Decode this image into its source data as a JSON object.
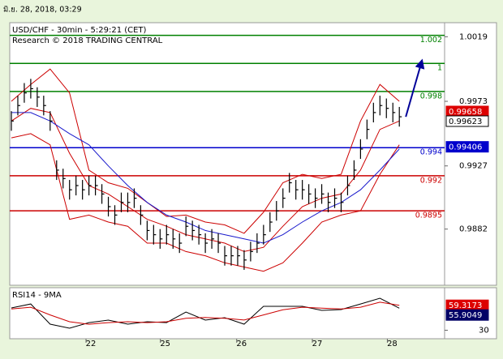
{
  "timestamp": "มิ.ย. 28, 2018, 03:29",
  "chart_data": [
    {
      "type": "ohlc",
      "title": "USD/CHF - 30min - 5:29:21 (CET)",
      "subtitle": "Research © 2018 TRADING CENTRAL",
      "color": "#000000",
      "x": [
        0,
        1,
        2,
        3,
        4,
        5,
        6,
        7,
        8,
        9,
        10,
        11,
        12,
        13,
        14,
        15,
        16,
        17,
        18,
        19,
        20,
        21,
        22,
        23,
        24,
        25,
        26,
        27,
        28,
        29,
        30,
        31,
        32,
        33,
        34,
        35,
        36,
        37,
        38,
        39,
        40,
        41,
        42,
        43,
        44,
        45,
        46,
        47,
        48,
        49,
        50,
        51,
        52,
        53,
        54,
        55,
        56,
        57,
        58,
        59,
        60
      ],
      "high": [
        0.9966,
        0.9977,
        0.9986,
        0.9989,
        0.9983,
        0.9977,
        0.9966,
        0.9931,
        0.9925,
        0.9917,
        0.992,
        0.9917,
        0.992,
        0.992,
        0.9914,
        0.9905,
        0.9899,
        0.9908,
        0.9908,
        0.9911,
        0.9899,
        0.9888,
        0.9885,
        0.9882,
        0.9885,
        0.9882,
        0.9879,
        0.9891,
        0.9888,
        0.9885,
        0.9879,
        0.9882,
        0.9879,
        0.987,
        0.987,
        0.987,
        0.9867,
        0.9873,
        0.9879,
        0.9885,
        0.9894,
        0.9902,
        0.9911,
        0.9922,
        0.9917,
        0.9917,
        0.9914,
        0.9911,
        0.9914,
        0.9908,
        0.9911,
        0.9908,
        0.992,
        0.9931,
        0.9946,
        0.996,
        0.9972,
        0.9977,
        0.9975,
        0.9972,
        0.9969
      ],
      "low": [
        0.9952,
        0.9963,
        0.9972,
        0.9975,
        0.9969,
        0.9963,
        0.9952,
        0.9917,
        0.9911,
        0.9903,
        0.9906,
        0.9903,
        0.9906,
        0.9906,
        0.99,
        0.9891,
        0.9885,
        0.9894,
        0.9894,
        0.9897,
        0.9885,
        0.9874,
        0.9871,
        0.9868,
        0.9871,
        0.9868,
        0.9865,
        0.9877,
        0.9874,
        0.9871,
        0.9865,
        0.9868,
        0.9865,
        0.9856,
        0.9856,
        0.9856,
        0.9853,
        0.9859,
        0.9865,
        0.9871,
        0.988,
        0.9888,
        0.9897,
        0.9908,
        0.9903,
        0.9903,
        0.99,
        0.9897,
        0.99,
        0.9894,
        0.9897,
        0.9894,
        0.9906,
        0.9917,
        0.9932,
        0.9946,
        0.9958,
        0.9963,
        0.9961,
        0.9958,
        0.9955
      ],
      "close": [
        0.9959,
        0.997,
        0.9979,
        0.9982,
        0.9976,
        0.997,
        0.9959,
        0.9924,
        0.9918,
        0.991,
        0.9913,
        0.991,
        0.9913,
        0.9913,
        0.9907,
        0.9898,
        0.9892,
        0.9901,
        0.9901,
        0.9904,
        0.9892,
        0.9881,
        0.9878,
        0.9875,
        0.9878,
        0.9875,
        0.9872,
        0.9884,
        0.9881,
        0.9878,
        0.9872,
        0.9875,
        0.9872,
        0.9863,
        0.9863,
        0.9863,
        0.986,
        0.9866,
        0.9872,
        0.9878,
        0.9887,
        0.9895,
        0.9904,
        0.9915,
        0.991,
        0.991,
        0.9907,
        0.9904,
        0.9907,
        0.9901,
        0.9904,
        0.9901,
        0.9913,
        0.9924,
        0.9939,
        0.9953,
        0.9965,
        0.997,
        0.9968,
        0.9965,
        0.9962
      ],
      "lines": [
        {
          "color": "#cc0000",
          "x": [
            0,
            3,
            6,
            9,
            12,
            15,
            18,
            21,
            24,
            27,
            30,
            33,
            36,
            39,
            42,
            45,
            48,
            51,
            54,
            57,
            60
          ],
          "values": [
            0.9973,
            0.9985,
            0.9996,
            0.9979,
            0.9924,
            0.9915,
            0.9911,
            0.9901,
            0.9891,
            0.9892,
            0.9887,
            0.9885,
            0.9879,
            0.9894,
            0.9915,
            0.9921,
            0.9918,
            0.9921,
            0.9959,
            0.9985,
            0.9973
          ]
        },
        {
          "color": "#cc0000",
          "x": [
            0,
            3,
            6,
            9,
            12,
            15,
            18,
            21,
            24,
            27,
            30,
            33,
            36,
            39,
            42,
            45,
            48,
            51,
            54,
            57,
            60
          ],
          "values": [
            0.9947,
            0.995,
            0.9942,
            0.9889,
            0.9892,
            0.9887,
            0.9884,
            0.9872,
            0.9872,
            0.9866,
            0.9863,
            0.9858,
            0.9855,
            0.9852,
            0.9858,
            0.9872,
            0.9887,
            0.9892,
            0.9895,
            0.9921,
            0.9942
          ]
        },
        {
          "color": "#cc0000",
          "x": [
            0,
            3,
            6,
            9,
            12,
            15,
            18,
            21,
            24,
            27,
            30,
            33,
            36,
            39,
            42,
            45,
            48,
            51,
            54,
            57,
            60
          ],
          "values": [
            0.9959,
            0.9968,
            0.9965,
            0.9936,
            0.9913,
            0.9907,
            0.9898,
            0.9889,
            0.9884,
            0.9878,
            0.9875,
            0.9872,
            0.9866,
            0.9869,
            0.9884,
            0.9898,
            0.9904,
            0.9907,
            0.9924,
            0.9953,
            0.9959
          ]
        },
        {
          "color": "#1a1acc",
          "x": [
            0,
            3,
            6,
            9,
            12,
            15,
            18,
            21,
            24,
            27,
            30,
            33,
            36,
            39,
            42,
            45,
            48,
            51,
            54,
            57,
            60
          ],
          "values": [
            0.9965,
            0.9965,
            0.9959,
            0.995,
            0.9942,
            0.9927,
            0.9913,
            0.9901,
            0.9892,
            0.9887,
            0.9881,
            0.9878,
            0.9875,
            0.9872,
            0.9878,
            0.9887,
            0.9895,
            0.9901,
            0.991,
            0.9924,
            0.9939
          ]
        }
      ],
      "levels": [
        {
          "value": 1.002,
          "color": "#008000"
        },
        {
          "value": 1,
          "color": "#008000"
        },
        {
          "value": 0.998,
          "color": "#008000"
        },
        {
          "value": 0.994,
          "color": "#0000cc"
        },
        {
          "value": 0.992,
          "color": "#cc0000"
        },
        {
          "value": 0.9895,
          "color": "#cc0000"
        }
      ],
      "price_tags": [
        {
          "value": 0.99658,
          "color": "#dd0000"
        },
        {
          "value": 0.99623,
          "color": "#000000"
        },
        {
          "value": 0.99406,
          "color": "#0000cc"
        }
      ],
      "projection": {
        "color": "#000099",
        "x": [
          61,
          63.5
        ],
        "values": [
          0.9962,
          1.0002
        ]
      },
      "xlim": [
        -0.25,
        67
      ],
      "ylim": [
        0.9842,
        1.0029
      ],
      "yticks": [
        1.0019,
        0.9973,
        0.9927,
        0.9882
      ]
    },
    {
      "type": "line",
      "title": "RSI14 - 9MA",
      "x": [
        0,
        3,
        6,
        9,
        12,
        15,
        18,
        21,
        24,
        27,
        30,
        33,
        36,
        39,
        42,
        45,
        48,
        51,
        54,
        57,
        60
      ],
      "series": [
        {
          "color": "#000000",
          "values": [
            56.2,
            60.9,
            37.1,
            32.4,
            39.0,
            41.9,
            37.1,
            40.0,
            39.0,
            51.4,
            41.9,
            44.8,
            37.1,
            58.1,
            58.1,
            58.1,
            53.3,
            54.3,
            60.9,
            67.6,
            55.9
          ]
        },
        {
          "color": "#cc0000",
          "values": [
            55,
            57,
            48,
            40,
            37,
            39,
            40,
            39,
            40,
            44,
            45,
            44,
            42,
            48,
            54,
            57,
            56,
            55,
            57,
            63,
            59.3
          ]
        }
      ],
      "price_tags": [
        {
          "value": 59.3173,
          "color": "#dd0000"
        },
        {
          "value": 55.9049,
          "color": "#000066"
        }
      ],
      "xlim": [
        -0.25,
        67
      ],
      "ylim": [
        20,
        80
      ],
      "yticks": [
        30
      ],
      "xticks": [
        {
          "value": 12.3,
          "label": "22"
        },
        {
          "value": 23.8,
          "label": "25"
        },
        {
          "value": 35.6,
          "label": "26"
        },
        {
          "value": 47.3,
          "label": "27"
        },
        {
          "value": 58.9,
          "label": "28"
        }
      ]
    }
  ]
}
